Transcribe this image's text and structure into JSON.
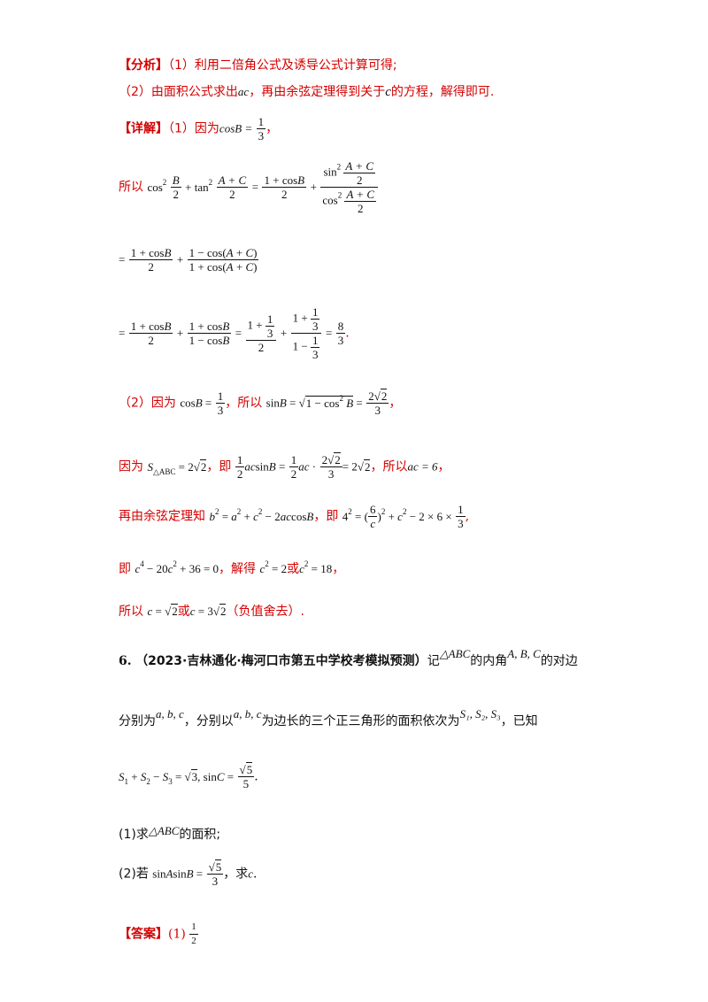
{
  "analysis": {
    "tag": "【分析】",
    "line1": "（1）利用二倍角公式及诱导公式计算可得;",
    "line2_a": "（2）由面积公式求出",
    "line2_ac": "ac",
    "line2_b": "，再由余弦定理得到关于",
    "line2_c": "c",
    "line2_d": "的方程，解得即可."
  },
  "detail": {
    "tag": "【详解】",
    "part1_because": "（1）因为",
    "cosB_eq": "cosB =",
    "so": "所以",
    "comma": "，",
    "period": ".",
    "part2_because": "（2）因为",
    "part2_so": "，所以",
    "because": "因为",
    "ji": "，即",
    "suoyi": "，所以",
    "ac_eq": "ac = 6",
    "cosine_law": "再由余弦定理知",
    "ji2": "，即",
    "ji3": "即",
    "jiede": "，解得",
    "huo": "或",
    "final_so": "所以",
    "neg_discard": "（负值舍去）."
  },
  "problem": {
    "number": "6.",
    "source": "（2023·吉林通化·梅河口市第五中学校考模拟预测）",
    "ji": "记",
    "triangle": "△ABC",
    "inner_angles": "的内角",
    "angles": "A, B, C",
    "opposite_sides": "的对边",
    "respectively": "分别为",
    "sides": "a, b, c",
    "with_sides": "，分别以",
    "equilateral": "为边长的三个正三角形的面积依次为",
    "areas": "S₁, S₂, S₃",
    "given": "，已知",
    "q1_a": "(1)求",
    "q1_b": "的面积;",
    "q2_a": "(2)若",
    "q2_b": "，求",
    "q2_c": "c",
    "answer_tag": "【答案】",
    "answer_1": "(1)",
    "answer_num": "1",
    "answer_den": "2"
  }
}
